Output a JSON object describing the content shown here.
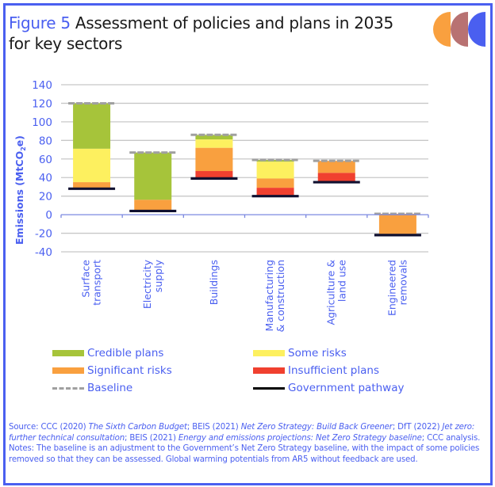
{
  "figure": {
    "label": "Figure 5",
    "title": "Assessment of policies and plans in 2035 for key sectors",
    "title_line1": "Assessment of policies and plans in 2035",
    "title_line2": "for key sectors"
  },
  "logo": {
    "colors": [
      "#f9a03f",
      "#b87272",
      "#4a5ff0"
    ]
  },
  "colors": {
    "credible": "#a6c43a",
    "some_risks": "#fdf05f",
    "significant": "#f9a03f",
    "insufficient": "#f0402f",
    "baseline": "#a0a0a0",
    "government": "#000000",
    "axis_text": "#4a5ff0",
    "grid": "#c8c8c8",
    "zero_axis": "#7b88e0",
    "border": "#4a5ff0"
  },
  "chart_data": {
    "type": "bar",
    "subtype": "stacked-waterfall",
    "title": "Assessment of policies and plans in 2035 for key sectors",
    "xlabel": "",
    "ylabel": "Emissions (MtCO2e)",
    "ylabel_main": "Emissions (MtCO",
    "ylabel_sub": "2",
    "ylabel_end": "e)",
    "ylim": [
      -40,
      140
    ],
    "yticks": [
      140,
      120,
      100,
      80,
      60,
      40,
      20,
      0,
      -20,
      -40
    ],
    "grid": true,
    "categories": [
      [
        "Surface",
        "transport"
      ],
      [
        "Electricity",
        "supply"
      ],
      [
        "Buildings"
      ],
      [
        "Manufacturing",
        "& construction"
      ],
      [
        "Agriculture &",
        "land use"
      ],
      [
        "Engineered",
        "removals"
      ]
    ],
    "category_names": [
      "Surface transport",
      "Electricity supply",
      "Buildings",
      "Manufacturing & construction",
      "Agriculture & land use",
      "Engineered removals"
    ],
    "baseline": [
      120,
      67,
      86,
      59,
      58,
      1
    ],
    "government_pathway": [
      28,
      4,
      39,
      20,
      35,
      -22
    ],
    "series": [
      {
        "name": "Credible plans",
        "key": "credible",
        "values": [
          49,
          51,
          5,
          2,
          0,
          0
        ]
      },
      {
        "name": "Some risks",
        "key": "some_risks",
        "values": [
          36,
          0,
          9,
          18,
          0,
          0
        ]
      },
      {
        "name": "Significant risks",
        "key": "significant",
        "values": [
          7,
          12,
          25,
          10,
          13,
          23
        ]
      },
      {
        "name": "Insufficient plans",
        "key": "insufficient",
        "values": [
          0,
          0,
          8,
          9,
          10,
          0
        ]
      }
    ],
    "legend": {
      "placement": "bottom",
      "items": [
        {
          "label": "Credible plans",
          "key": "credible",
          "kind": "swatch"
        },
        {
          "label": "Some risks",
          "key": "some_risks",
          "kind": "swatch"
        },
        {
          "label": "Significant risks",
          "key": "significant",
          "kind": "swatch"
        },
        {
          "label": "Insufficient plans",
          "key": "insufficient",
          "kind": "swatch"
        },
        {
          "label": "Baseline",
          "key": "baseline",
          "kind": "dashed-line"
        },
        {
          "label": "Government pathway",
          "key": "government",
          "kind": "solid-line"
        }
      ]
    }
  },
  "notes": {
    "source_prefix": "Source: CCC (2020) ",
    "source_1": "The Sixth Carbon Budget",
    "source_2": "; BEIS (2021) ",
    "source_3": "Net Zero Strategy: Build Back Greener",
    "source_4": "; DfT (2022) ",
    "source_5": "Jet zero: further technical consultation",
    "source_6": "; BEIS (2021) ",
    "source_7": "Energy and emissions projections: Net Zero Strategy baseline",
    "source_8": "; CCC analysis.",
    "notes_text": "Notes: The baseline is an adjustment to the Government’s Net Zero Strategy baseline, with the impact of some policies removed so that they can be assessed. Global warming potentials from AR5 without feedback are used."
  }
}
